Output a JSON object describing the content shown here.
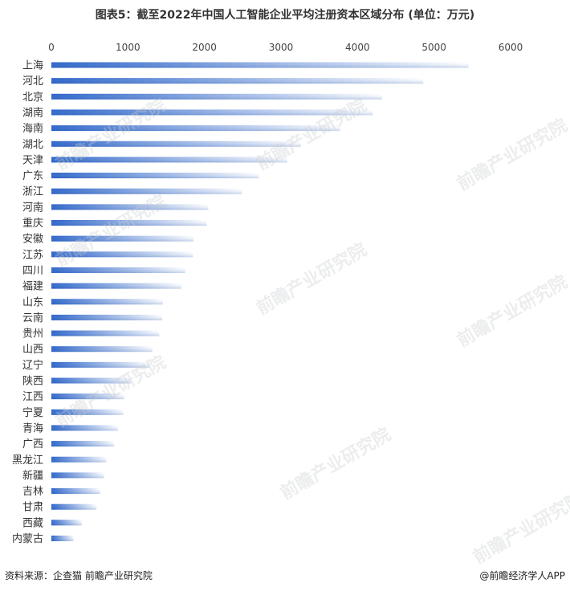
{
  "chart_data": {
    "type": "bar",
    "orientation": "horizontal",
    "title": "图表5：截至2022年中国人工智能企业平均注册资本区域分布 (单位：万元)",
    "categories": [
      "上海",
      "河北",
      "北京",
      "湖南",
      "海南",
      "湖北",
      "天津",
      "广东",
      "浙江",
      "河南",
      "重庆",
      "安徽",
      "江苏",
      "四川",
      "福建",
      "山东",
      "云南",
      "贵州",
      "山西",
      "辽宁",
      "陕西",
      "江西",
      "宁夏",
      "青海",
      "广西",
      "黑龙江",
      "新疆",
      "吉林",
      "甘肃",
      "西藏",
      "内蒙古"
    ],
    "values": [
      5450,
      4860,
      4320,
      4200,
      3770,
      3260,
      3080,
      2710,
      2490,
      2050,
      2030,
      1860,
      1850,
      1750,
      1700,
      1460,
      1450,
      1410,
      1320,
      1280,
      1040,
      950,
      940,
      870,
      820,
      720,
      690,
      640,
      590,
      400,
      290
    ],
    "xlim": [
      0,
      6000
    ],
    "xticks": [
      "0",
      "1000",
      "2000",
      "3000",
      "4000",
      "5000",
      "6000"
    ],
    "xaxis_position": "top",
    "grid": false,
    "colors": {
      "bar_dark": "#2a63c9",
      "bar_light": "#ffffff"
    }
  },
  "footer": {
    "source": "资料来源：企查猫 前瞻产业研究院",
    "brand": "@前瞻经济学人APP"
  },
  "watermark": "前瞻产业研究院"
}
